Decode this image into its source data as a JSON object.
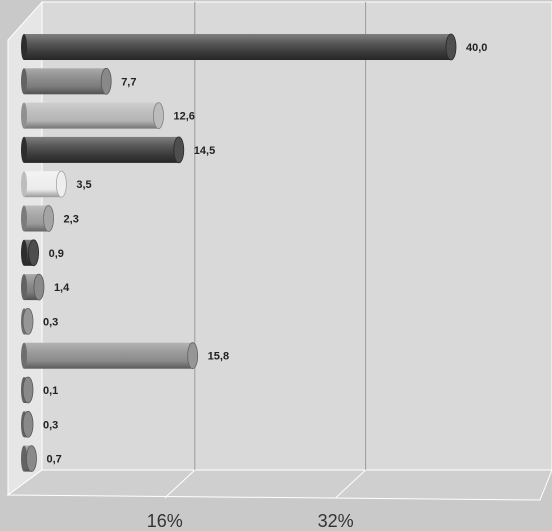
{
  "chart_data": {
    "type": "bar",
    "orientation": "horizontal",
    "style": "3d-cylinder",
    "xlim": [
      0,
      40
    ],
    "x_ticks": [
      16,
      32
    ],
    "tick_labels": [
      "16%",
      "32%"
    ],
    "grid": true,
    "legend": "none",
    "values": [
      40.0,
      7.7,
      12.6,
      14.5,
      3.5,
      2.3,
      0.9,
      1.4,
      0.3,
      15.8,
      0.1,
      0.3,
      0.7
    ],
    "value_labels": [
      "40,0",
      "7,7",
      "12,6",
      "14,5",
      "3,5",
      "2,3",
      "0,9",
      "1,4",
      "0,3",
      "15,8",
      "0,1",
      "0,3",
      "0,7"
    ],
    "bar_colors": [
      "#3a3a3a",
      "#7c7c7c",
      "#b4b4b4",
      "#3a3a3a",
      "#ececec",
      "#9a9a9a",
      "#3a3a3a",
      "#7c7c7c",
      "#8a8a8a",
      "#8a8a8a",
      "#7c7c7c",
      "#7c7c7c",
      "#7c7c7c"
    ]
  },
  "colors": {
    "background": "#c9c9c9",
    "plot_wall": "#d9d9d9",
    "gridline": "#9b9b9b",
    "label_text": "#222222"
  }
}
